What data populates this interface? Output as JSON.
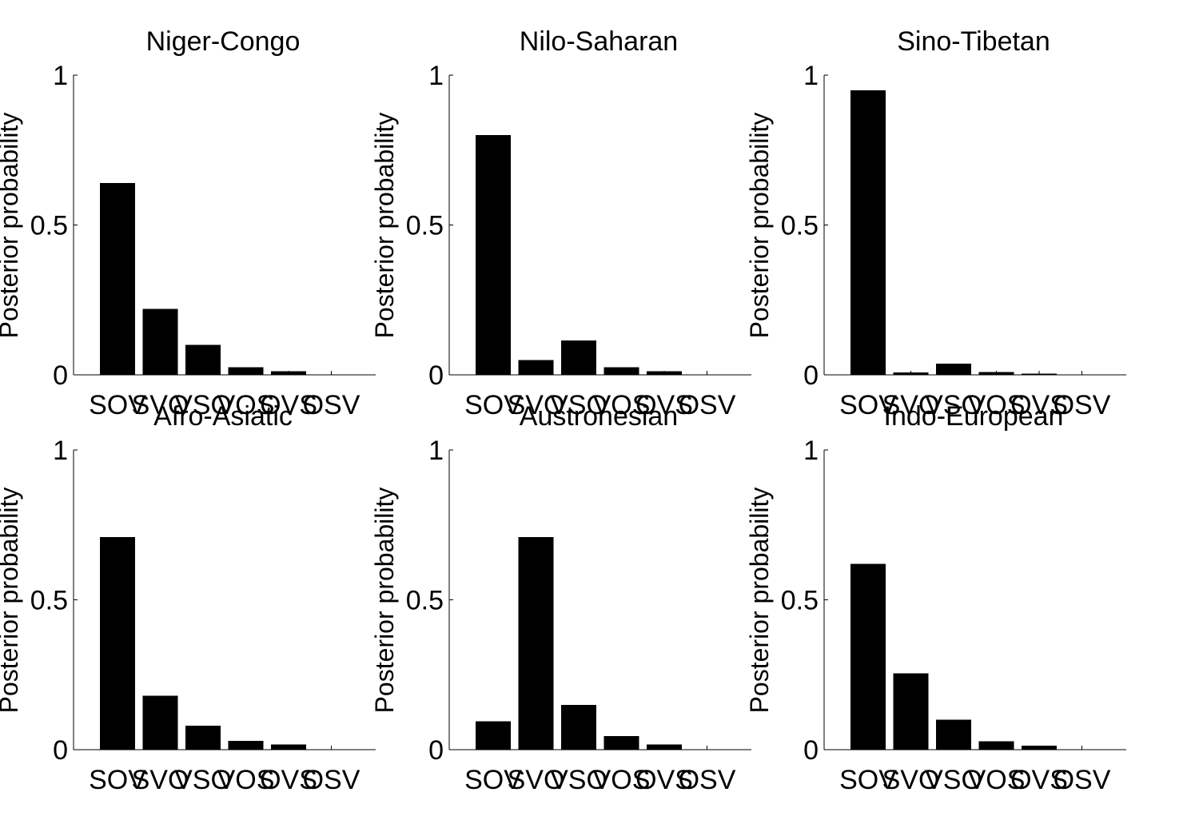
{
  "chart_data": [
    {
      "type": "bar",
      "title": "Niger-Congo",
      "ylabel": "Posterior probability",
      "categories": [
        "SOV",
        "SVO",
        "VSO",
        "VOS",
        "OVS",
        "OSV"
      ],
      "values": [
        0.64,
        0.22,
        0.1,
        0.025,
        0.012,
        0.0
      ],
      "ylim": [
        0,
        1
      ],
      "yticks": [
        "0",
        "0.5",
        "1"
      ],
      "grid": false,
      "bar_color": "#000000"
    },
    {
      "type": "bar",
      "title": "Nilo-Saharan",
      "ylabel": "Posterior probability",
      "categories": [
        "SOV",
        "SVO",
        "VSO",
        "VOS",
        "OVS",
        "OSV"
      ],
      "values": [
        0.8,
        0.05,
        0.115,
        0.025,
        0.012,
        0.0
      ],
      "ylim": [
        0,
        1
      ],
      "yticks": [
        "0",
        "0.5",
        "1"
      ],
      "grid": false,
      "bar_color": "#000000"
    },
    {
      "type": "bar",
      "title": "Sino-Tibetan",
      "ylabel": "Posterior probability",
      "categories": [
        "SOV",
        "SVO",
        "VSO",
        "VOS",
        "OVS",
        "OSV"
      ],
      "values": [
        0.95,
        0.008,
        0.038,
        0.01,
        0.004,
        0.0
      ],
      "ylim": [
        0,
        1
      ],
      "yticks": [
        "0",
        "0.5",
        "1"
      ],
      "grid": false,
      "bar_color": "#000000"
    },
    {
      "type": "bar",
      "title": "Afro-Asiatic",
      "ylabel": "Posterior probability",
      "categories": [
        "SOV",
        "SVO",
        "VSO",
        "VOS",
        "OVS",
        "OSV"
      ],
      "values": [
        0.71,
        0.18,
        0.08,
        0.03,
        0.018,
        0.0
      ],
      "ylim": [
        0,
        1
      ],
      "yticks": [
        "0",
        "0.5",
        "1"
      ],
      "grid": false,
      "bar_color": "#000000"
    },
    {
      "type": "bar",
      "title": "Austronesian",
      "ylabel": "Posterior probability",
      "categories": [
        "SOV",
        "SVO",
        "VSO",
        "VOS",
        "OVS",
        "OSV"
      ],
      "values": [
        0.095,
        0.71,
        0.15,
        0.045,
        0.018,
        0.0
      ],
      "ylim": [
        0,
        1
      ],
      "yticks": [
        "0",
        "0.5",
        "1"
      ],
      "grid": false,
      "bar_color": "#000000"
    },
    {
      "type": "bar",
      "title": "Indo-European",
      "ylabel": "Posterior probability",
      "categories": [
        "SOV",
        "SVO",
        "VSO",
        "VOS",
        "OVS",
        "OSV"
      ],
      "values": [
        0.62,
        0.255,
        0.1,
        0.028,
        0.014,
        0.0
      ],
      "ylim": [
        0,
        1
      ],
      "yticks": [
        "0",
        "0.5",
        "1"
      ],
      "grid": false,
      "bar_color": "#000000"
    }
  ]
}
